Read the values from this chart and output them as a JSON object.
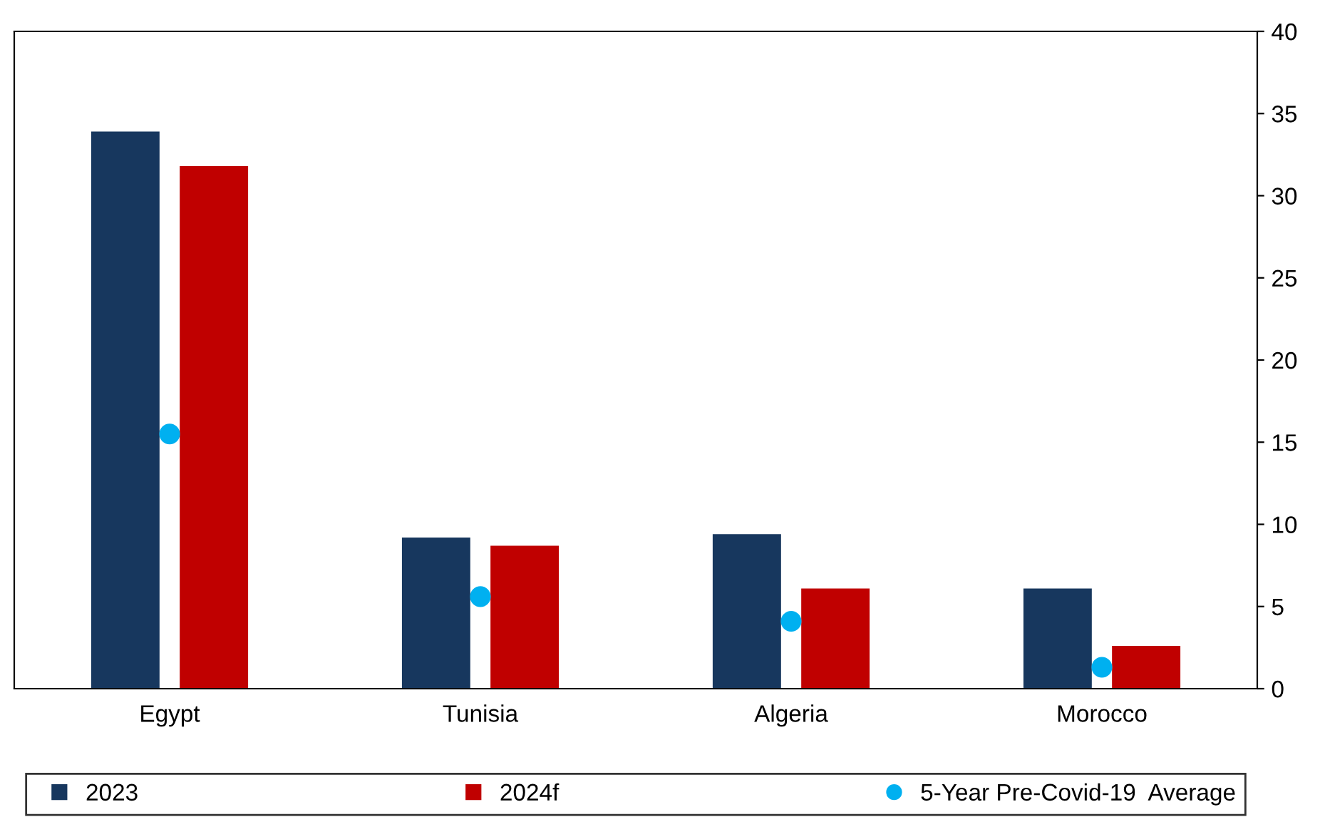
{
  "chart_data": {
    "type": "bar",
    "categories": [
      "Egypt",
      "Tunisia",
      "Algeria",
      "Morocco"
    ],
    "series": [
      {
        "name": "2023",
        "color": "#17375e",
        "values": [
          33.9,
          9.2,
          9.4,
          6.1
        ]
      },
      {
        "name": "2024f",
        "color": "#c00000",
        "values": [
          31.8,
          8.7,
          6.1,
          2.6
        ]
      },
      {
        "name": "5-Year Pre-Covid-19  Average",
        "type": "scatter",
        "color": "#00b0f0",
        "values": [
          15.5,
          5.6,
          4.1,
          1.3
        ],
        "x": [
          "Egypt",
          "Tunisia",
          "Algeria",
          "Morocco"
        ]
      }
    ],
    "ylim": [
      0,
      40
    ],
    "yticks": [
      0,
      5,
      10,
      15,
      20,
      25,
      30,
      35,
      40
    ],
    "grid": false,
    "legend": "bottom",
    "marker": "circle"
  }
}
